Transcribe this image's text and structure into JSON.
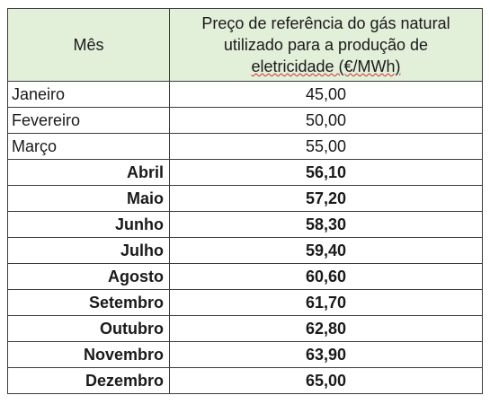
{
  "table": {
    "headers": {
      "month": "Mês",
      "price_lines": [
        "Preço de referência do gás natural",
        "utilizado para a produção de",
        "eletricidade (€/MWh)"
      ]
    },
    "rows": [
      {
        "month": "Janeiro",
        "price": "45,00",
        "emphasis": "normal"
      },
      {
        "month": "Fevereiro",
        "price": "50,00",
        "emphasis": "normal"
      },
      {
        "month": "Março",
        "price": "55,00",
        "emphasis": "normal"
      },
      {
        "month": "Abril",
        "price": "56,10",
        "emphasis": "bold"
      },
      {
        "month": "Maio",
        "price": "57,20",
        "emphasis": "bold"
      },
      {
        "month": "Junho",
        "price": "58,30",
        "emphasis": "bold"
      },
      {
        "month": "Julho",
        "price": "59,40",
        "emphasis": "bold"
      },
      {
        "month": "Agosto",
        "price": "60,60",
        "emphasis": "bold"
      },
      {
        "month": "Setembro",
        "price": "61,70",
        "emphasis": "bold"
      },
      {
        "month": "Outubro",
        "price": "62,80",
        "emphasis": "bold"
      },
      {
        "month": "Novembro",
        "price": "63,90",
        "emphasis": "bold"
      },
      {
        "month": "Dezembro",
        "price": "65,00",
        "emphasis": "bold"
      }
    ]
  },
  "colors": {
    "header_background": "#e2efd9",
    "border": "#3c3c3c",
    "text": "#1a1a1a",
    "spellcheck_underline": "#d03030"
  }
}
